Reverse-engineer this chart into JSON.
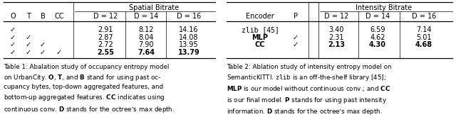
{
  "table1": {
    "title_text": "Spatial Bitrate",
    "col_headers_left": [
      "O",
      "T",
      "B",
      "CC"
    ],
    "col_headers_right": [
      "D = 12",
      "D = 14",
      "D = 16"
    ],
    "rows": [
      [
        true,
        false,
        false,
        false,
        "2.91",
        "8.12",
        "14.16"
      ],
      [
        true,
        true,
        false,
        false,
        "2.87",
        "8.04",
        "14.08"
      ],
      [
        true,
        true,
        true,
        false,
        "2.72",
        "7.90",
        "13.95"
      ],
      [
        true,
        true,
        true,
        true,
        "2.55",
        "7.64",
        "13.79"
      ]
    ]
  },
  "table2": {
    "title_text": "Intensity Bitrate",
    "col_headers": [
      "Encoder",
      "P",
      "D = 12",
      "D = 14",
      "D = 16"
    ],
    "rows": [
      [
        "zlib [45]",
        false,
        "3.40",
        "6.59",
        "7.14"
      ],
      [
        "MLP",
        true,
        "2.31",
        "4.62",
        "5.01"
      ],
      [
        "CC",
        true,
        "2.13",
        "4.30",
        "4.68"
      ]
    ]
  },
  "bg_color": "#ffffff",
  "fs": 7.0,
  "cfs": 6.3
}
